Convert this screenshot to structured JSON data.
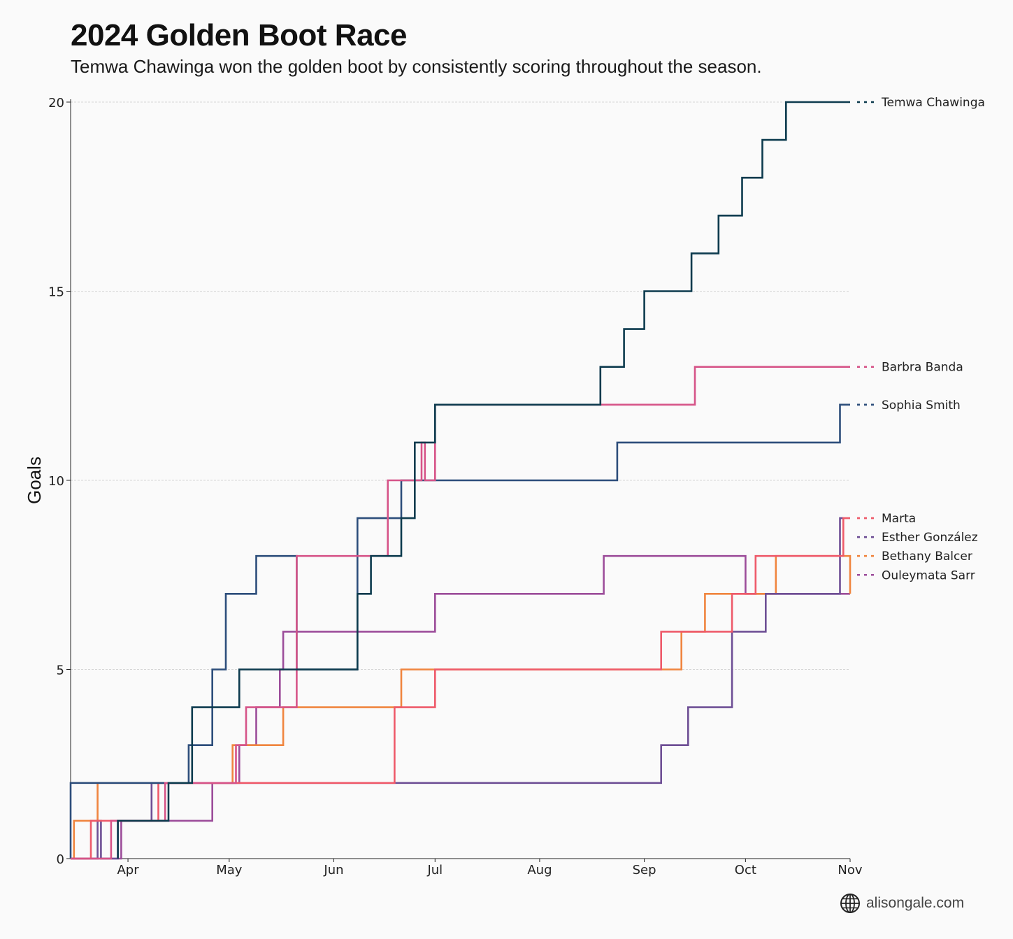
{
  "header": {
    "title": "2024 Golden Boot Race",
    "subtitle": "Temwa Chawinga won the golden boot by consistently scoring throughout the season."
  },
  "credit": {
    "text": "alisongale.com",
    "icon": "globe-icon"
  },
  "chart_data": {
    "type": "line",
    "step": true,
    "title": "2024 Golden Boot Race",
    "subtitle": "Temwa Chawinga won the golden boot by consistently scoring throughout the season.",
    "xlabel": "",
    "ylabel": "Goals",
    "xlim": [
      "2024-03-15",
      "2024-11-01"
    ],
    "ylim": [
      0,
      20
    ],
    "x_ticks": [
      {
        "label": "Apr",
        "date": "2024-04-01"
      },
      {
        "label": "May",
        "date": "2024-05-01"
      },
      {
        "label": "Jun",
        "date": "2024-06-01"
      },
      {
        "label": "Jul",
        "date": "2024-07-01"
      },
      {
        "label": "Aug",
        "date": "2024-08-01"
      },
      {
        "label": "Sep",
        "date": "2024-09-01"
      },
      {
        "label": "Oct",
        "date": "2024-10-01"
      },
      {
        "label": "Nov",
        "date": "2024-11-01"
      }
    ],
    "y_ticks": [
      0,
      5,
      10,
      15,
      20
    ],
    "grid": "horizontal",
    "legend": "right, labels at line ends",
    "series": [
      {
        "name": "Ouleymata Sarr",
        "color": "#9c4d9a",
        "points": [
          [
            "2024-03-15",
            0
          ],
          [
            "2024-03-30",
            1
          ],
          [
            "2024-04-26",
            2
          ],
          [
            "2024-05-04",
            3
          ],
          [
            "2024-05-09",
            4
          ],
          [
            "2024-05-16",
            5
          ],
          [
            "2024-05-17",
            6
          ],
          [
            "2024-06-27",
            6
          ],
          [
            "2024-07-01",
            7
          ],
          [
            "2024-08-20",
            7
          ],
          [
            "2024-08-20",
            8
          ],
          [
            "2024-10-01",
            8
          ],
          [
            "2024-10-01",
            7
          ],
          [
            "2024-11-01",
            7
          ]
        ]
      },
      {
        "name": "Bethany Balcer",
        "color": "#f0853f",
        "points": [
          [
            "2024-03-15",
            0
          ],
          [
            "2024-03-16",
            1
          ],
          [
            "2024-03-23",
            1
          ],
          [
            "2024-03-23",
            2
          ],
          [
            "2024-05-01",
            2
          ],
          [
            "2024-05-02",
            3
          ],
          [
            "2024-05-17",
            4
          ],
          [
            "2024-06-21",
            4
          ],
          [
            "2024-06-21",
            5
          ],
          [
            "2024-09-12",
            5
          ],
          [
            "2024-09-12",
            6
          ],
          [
            "2024-09-19",
            7
          ],
          [
            "2024-10-10",
            7
          ],
          [
            "2024-10-10",
            8
          ],
          [
            "2024-11-01",
            8
          ],
          [
            "2024-11-01",
            7
          ]
        ]
      },
      {
        "name": "Esther González",
        "color": "#6e4f95",
        "points": [
          [
            "2024-03-15",
            0
          ],
          [
            "2024-03-23",
            1
          ],
          [
            "2024-03-24",
            1
          ],
          [
            "2024-03-24",
            0
          ],
          [
            "2024-03-29",
            0
          ],
          [
            "2024-03-29",
            1
          ],
          [
            "2024-04-08",
            1
          ],
          [
            "2024-04-08",
            2
          ],
          [
            "2024-06-19",
            2
          ],
          [
            "2024-09-06",
            2
          ],
          [
            "2024-09-06",
            3
          ],
          [
            "2024-09-14",
            4
          ],
          [
            "2024-09-27",
            4
          ],
          [
            "2024-09-27",
            6
          ],
          [
            "2024-10-07",
            7
          ],
          [
            "2024-10-29",
            7
          ],
          [
            "2024-10-29",
            9
          ],
          [
            "2024-10-30",
            9
          ]
        ]
      },
      {
        "name": "Marta",
        "color": "#ee5a6a",
        "points": [
          [
            "2024-03-15",
            0
          ],
          [
            "2024-03-21",
            1
          ],
          [
            "2024-04-10",
            2
          ],
          [
            "2024-06-19",
            2
          ],
          [
            "2024-06-19",
            4
          ],
          [
            "2024-07-01",
            4
          ],
          [
            "2024-07-01",
            5
          ],
          [
            "2024-09-06",
            5
          ],
          [
            "2024-09-06",
            6
          ],
          [
            "2024-09-27",
            6
          ],
          [
            "2024-09-27",
            7
          ],
          [
            "2024-10-04",
            7
          ],
          [
            "2024-10-04",
            8
          ],
          [
            "2024-10-30",
            8
          ],
          [
            "2024-10-30",
            9
          ],
          [
            "2024-11-01",
            9
          ]
        ]
      },
      {
        "name": "Sophia Smith",
        "color": "#2d4e7b",
        "points": [
          [
            "2024-03-15",
            0
          ],
          [
            "2024-03-15",
            2
          ],
          [
            "2024-04-13",
            2
          ],
          [
            "2024-04-19",
            3
          ],
          [
            "2024-04-26",
            5
          ],
          [
            "2024-04-30",
            7
          ],
          [
            "2024-05-09",
            8
          ],
          [
            "2024-05-21",
            8
          ],
          [
            "2024-05-21",
            5
          ],
          [
            "2024-06-08",
            5
          ],
          [
            "2024-06-08",
            9
          ],
          [
            "2024-06-21",
            9
          ],
          [
            "2024-06-21",
            10
          ],
          [
            "2024-08-24",
            10
          ],
          [
            "2024-08-24",
            11
          ],
          [
            "2024-10-29",
            11
          ],
          [
            "2024-10-29",
            12
          ],
          [
            "2024-11-01",
            12
          ]
        ]
      },
      {
        "name": "Barbra Banda",
        "color": "#d65488",
        "points": [
          [
            "2024-03-15",
            0
          ],
          [
            "2024-03-27",
            1
          ],
          [
            "2024-04-12",
            1
          ],
          [
            "2024-04-12",
            2
          ],
          [
            "2024-05-03",
            2
          ],
          [
            "2024-05-03",
            3
          ],
          [
            "2024-05-06",
            4
          ],
          [
            "2024-05-21",
            8
          ],
          [
            "2024-06-17",
            8
          ],
          [
            "2024-06-17",
            10
          ],
          [
            "2024-06-27",
            10
          ],
          [
            "2024-06-27",
            11
          ],
          [
            "2024-06-28",
            11
          ],
          [
            "2024-06-28",
            10
          ],
          [
            "2024-07-01",
            10
          ],
          [
            "2024-07-01",
            12
          ],
          [
            "2024-08-19",
            12
          ],
          [
            "2024-09-16",
            12
          ],
          [
            "2024-09-16",
            13
          ],
          [
            "2024-11-01",
            13
          ]
        ]
      },
      {
        "name": "Temwa Chawinga",
        "color": "#0d3b4e",
        "points": [
          [
            "2024-03-29",
            0
          ],
          [
            "2024-03-29",
            1
          ],
          [
            "2024-04-13",
            1
          ],
          [
            "2024-04-13",
            2
          ],
          [
            "2024-04-20",
            2
          ],
          [
            "2024-04-20",
            4
          ],
          [
            "2024-05-04",
            4
          ],
          [
            "2024-05-04",
            5
          ],
          [
            "2024-06-08",
            5
          ],
          [
            "2024-06-08",
            7
          ],
          [
            "2024-06-12",
            8
          ],
          [
            "2024-06-21",
            8
          ],
          [
            "2024-06-21",
            9
          ],
          [
            "2024-06-25",
            9
          ],
          [
            "2024-06-25",
            11
          ],
          [
            "2024-07-01",
            11
          ],
          [
            "2024-07-01",
            12
          ],
          [
            "2024-08-19",
            12
          ],
          [
            "2024-08-19",
            13
          ],
          [
            "2024-08-26",
            14
          ],
          [
            "2024-09-01",
            15
          ],
          [
            "2024-09-15",
            15
          ],
          [
            "2024-09-15",
            16
          ],
          [
            "2024-09-23",
            17
          ],
          [
            "2024-09-30",
            18
          ],
          [
            "2024-10-06",
            19
          ],
          [
            "2024-10-13",
            20
          ],
          [
            "2024-11-01",
            20
          ]
        ]
      }
    ],
    "end_labels": [
      {
        "name": "Temwa Chawinga",
        "color": "#0d3b4e",
        "y": 20
      },
      {
        "name": "Barbra Banda",
        "color": "#d65488",
        "y": 13
      },
      {
        "name": "Sophia Smith",
        "color": "#2d4e7b",
        "y": 12
      },
      {
        "name": "Marta",
        "color": "#ee5a6a",
        "y": 9
      },
      {
        "name": "Esther González",
        "color": "#6e4f95",
        "y": 8.5
      },
      {
        "name": "Bethany Balcer",
        "color": "#f0853f",
        "y": 8
      },
      {
        "name": "Ouleymata Sarr",
        "color": "#9c4d9a",
        "y": 7.5
      }
    ]
  }
}
